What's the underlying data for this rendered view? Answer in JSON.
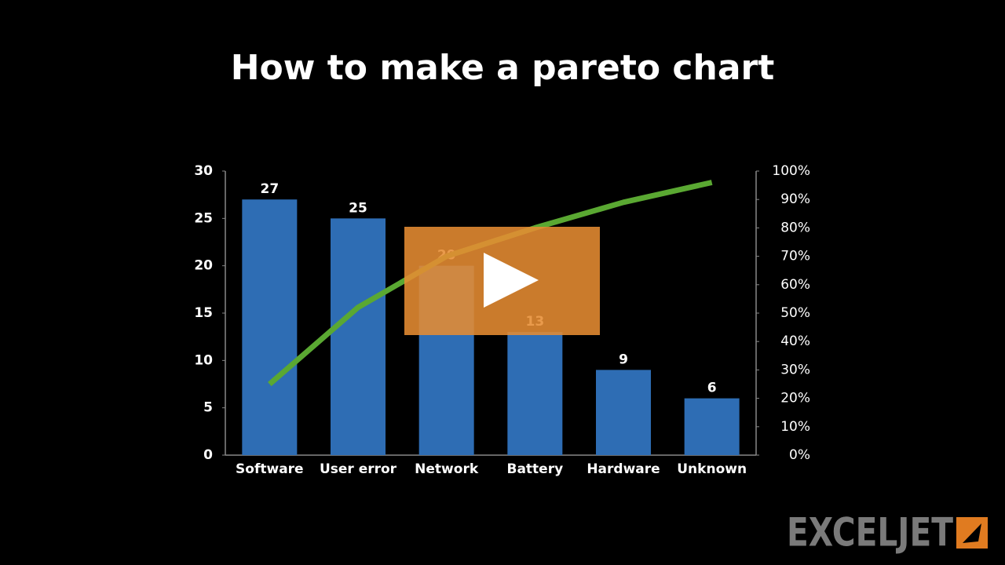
{
  "chart_data": {
    "type": "bar",
    "title": "How to make a pareto chart",
    "categories": [
      "Software",
      "User error",
      "Network",
      "Battery",
      "Hardware",
      "Unknown"
    ],
    "series": [
      {
        "type": "bar",
        "color": "#2e6db4",
        "values": [
          27,
          25,
          20,
          13,
          9,
          6
        ]
      },
      {
        "type": "line",
        "axis": "y2",
        "color": "#5aa832",
        "values": [
          25,
          52,
          70,
          80,
          89,
          96
        ]
      }
    ],
    "ylim": [
      0,
      30
    ],
    "yticks": [
      0,
      5,
      10,
      15,
      20,
      25,
      30
    ],
    "y2lim": [
      0,
      100
    ],
    "y2ticks": [
      {
        "value": 0,
        "label": "0%"
      },
      {
        "value": 10,
        "label": "10%"
      },
      {
        "value": 20,
        "label": "20%"
      },
      {
        "value": 30,
        "label": "30%"
      },
      {
        "value": 40,
        "label": "40%"
      },
      {
        "value": 50,
        "label": "50%"
      },
      {
        "value": 60,
        "label": "60%"
      },
      {
        "value": 70,
        "label": "70%"
      },
      {
        "value": 80,
        "label": "80%"
      },
      {
        "value": 90,
        "label": "90%"
      },
      {
        "value": 100,
        "label": "100%"
      }
    ],
    "grid": false
  },
  "logo": "EXCELJET"
}
